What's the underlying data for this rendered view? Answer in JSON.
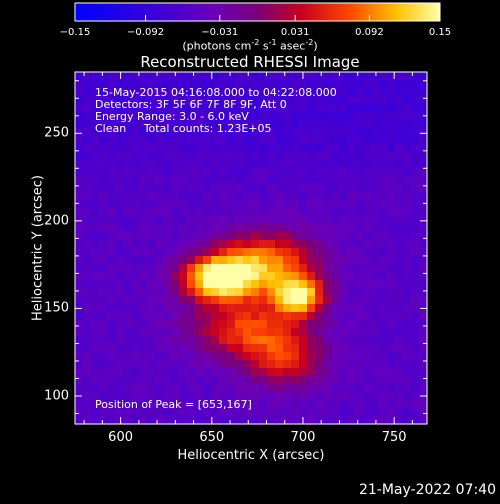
{
  "chart_data": {
    "type": "heatmap",
    "title": "Reconstructed RHESSI Image",
    "xlabel": "Heliocentric X (arcsec)",
    "ylabel": "Heliocentric Y (arcsec)",
    "xlim": [
      575,
      768
    ],
    "ylim": [
      84,
      285
    ],
    "xticks": [
      "600",
      "650",
      "700",
      "750"
    ],
    "xtick_values": [
      600,
      650,
      700,
      750
    ],
    "yticks": [
      "100",
      "150",
      "200",
      "250"
    ],
    "ytick_values": [
      100,
      150,
      200,
      250
    ],
    "colorbar": {
      "unit_label": "(photons cm",
      "unit_exp1": "-2",
      "unit_mid": " s",
      "unit_exp2": "-1",
      "unit_mid2": " asec",
      "unit_exp3": "-2",
      "unit_end": ")",
      "range": [
        -0.15,
        0.15
      ],
      "tick_labels": [
        "−0.15",
        "−0.092",
        "−0.031",
        "0.031",
        "0.092",
        "0.15"
      ],
      "tick_values": [
        -0.15,
        -0.092,
        -0.031,
        0.031,
        0.092,
        0.15
      ]
    },
    "info_lines": [
      "15-May-2015 04:16:08.000 to 04:22:08.000",
      "Detectors: 3F 5F 6F 7F 8F 9F, Att 0",
      "Energy Range: 3.0 - 6.0 keV",
      "Clean     Total counts: 1.23E+05"
    ],
    "peak_text": "Position of Peak = [653,167]",
    "peak": [
      653,
      167
    ],
    "sources": [
      {
        "x": 653,
        "y": 167,
        "peak": 0.15,
        "sx": 14,
        "sy": 9
      },
      {
        "x": 698,
        "y": 157,
        "peak": 0.118,
        "sx": 10,
        "sy": 8
      },
      {
        "x": 680,
        "y": 176,
        "peak": 0.09,
        "sx": 20,
        "sy": 13
      },
      {
        "x": 668,
        "y": 138,
        "peak": 0.06,
        "sx": 22,
        "sy": 12
      },
      {
        "x": 690,
        "y": 120,
        "peak": 0.04,
        "sx": 16,
        "sy": 12
      }
    ]
  },
  "footer": {
    "timestamp": "21-May-2022 07:40"
  },
  "colors": {
    "background": "#000000",
    "text": "#ffffff"
  }
}
